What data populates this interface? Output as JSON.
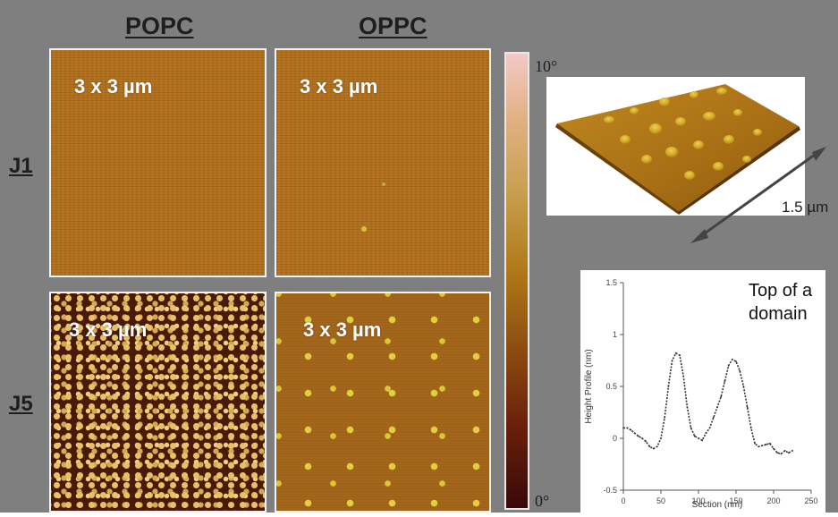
{
  "columns": {
    "popc": "POPC",
    "oppc": "OPPC"
  },
  "rows": {
    "j1": "J1",
    "j5": "J5"
  },
  "panels": {
    "j1_popc": {
      "scale": "3 x 3 µm"
    },
    "j1_oppc": {
      "scale": "3 x 3 µm"
    },
    "j5_popc": {
      "scale": "3 x 3 µm"
    },
    "j5_oppc": {
      "scale": "3 x 3 µm"
    }
  },
  "colorbar": {
    "top_label": "10°",
    "bottom_label": "0°",
    "colors": [
      "#f3c8c6",
      "#c8a050",
      "#b07818",
      "#6a200a",
      "#3a0808"
    ]
  },
  "surface3d": {
    "dimension_label": "1.5 µm"
  },
  "annotation": {
    "text": "Top of a domain"
  },
  "chart_data": {
    "type": "line",
    "xlabel": "Section (nm)",
    "ylabel": "Height Profile (nm)",
    "xlim": [
      0,
      250
    ],
    "ylim": [
      -0.5,
      1.5
    ],
    "xticks": [
      0,
      50,
      100,
      150,
      200,
      250
    ],
    "yticks": [
      -0.5,
      0,
      0.5,
      1,
      1.5
    ],
    "series": [
      {
        "x": [
          0,
          5,
          10,
          15,
          20,
          25,
          30,
          35,
          40,
          45,
          50,
          55,
          60,
          65,
          70,
          75,
          80,
          85,
          90,
          95,
          100,
          105,
          110,
          115,
          120,
          125,
          130,
          135,
          140,
          145,
          150,
          155,
          160,
          165,
          170,
          175,
          180,
          185,
          190,
          195,
          200,
          205,
          210,
          215,
          220,
          225
        ],
        "y": [
          0.1,
          0.1,
          0.08,
          0.05,
          0.02,
          0.0,
          -0.03,
          -0.08,
          -0.1,
          -0.08,
          0.0,
          0.2,
          0.5,
          0.75,
          0.82,
          0.8,
          0.6,
          0.3,
          0.1,
          0.02,
          0.0,
          -0.02,
          0.05,
          0.1,
          0.2,
          0.3,
          0.4,
          0.55,
          0.7,
          0.76,
          0.74,
          0.65,
          0.5,
          0.3,
          0.1,
          -0.05,
          -0.08,
          -0.07,
          -0.06,
          -0.05,
          -0.1,
          -0.14,
          -0.15,
          -0.12,
          -0.14,
          -0.12
        ]
      }
    ]
  }
}
